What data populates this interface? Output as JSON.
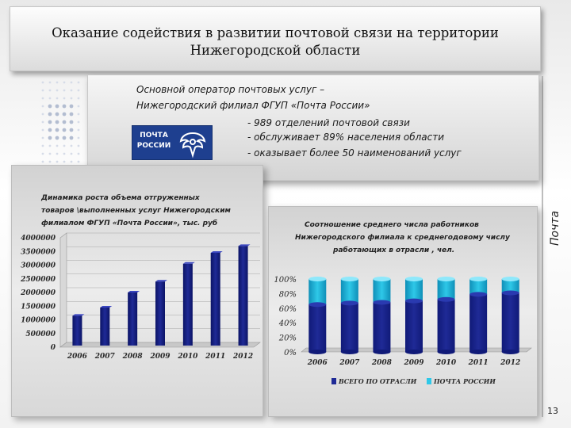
{
  "slide": {
    "title_line1": "Оказание содействия в развитии почтовой связи на территории",
    "title_line2": "Нижегородской области",
    "side_label": "Почта",
    "page_number": "13"
  },
  "info": {
    "line1": "Основной оператор почтовых услуг –",
    "line2": "Нижегородский филиал ФГУП «Почта России»",
    "bullet1": "- 989 отделений почтовой связи",
    "bullet2": "-  обслуживает 89% населения области",
    "bullet3": "- оказывает более 50 наименований услуг",
    "logo_line1": "ПОЧТА",
    "logo_line2": "РОССИИ"
  },
  "colors": {
    "bar_dark_blue": "#1f2a96",
    "bar_cyan": "#2ec8e8",
    "logo_blue": "#1e3f8f"
  },
  "chart_data": [
    {
      "type": "bar",
      "title_lines": [
        "Динамика роста объема отгруженных",
        "товаров \\выполненных  услуг Нижегородским",
        "филиалом ФГУП «Почта России», тыс. руб"
      ],
      "categories": [
        "2006",
        "2007",
        "2008",
        "2009",
        "2010",
        "2011",
        "2012"
      ],
      "values": [
        1150000,
        1450000,
        2000000,
        2400000,
        3050000,
        3450000,
        3700000
      ],
      "ylim": [
        0,
        4000000
      ],
      "yticks": [
        "4000000",
        "3500000",
        "3000000",
        "2500000",
        "2000000",
        "1500000",
        "1000000",
        "500000",
        "0"
      ],
      "grid": true
    },
    {
      "type": "bar",
      "stacked": true,
      "title_lines": [
        "Соотношение среднего числа работников",
        "Нижегородского филиала к среднегодовому числу",
        "работающих в отрасли , чел."
      ],
      "categories": [
        "2006",
        "2007",
        "2008",
        "2009",
        "2010",
        "2011",
        "2012"
      ],
      "series": [
        {
          "name": "Всего по отрасли",
          "values": [
            65,
            67,
            68,
            70,
            72,
            79,
            81
          ]
        },
        {
          "name": "Почта России",
          "values": [
            35,
            33,
            32,
            30,
            28,
            21,
            19
          ]
        }
      ],
      "ylim": [
        0,
        100
      ],
      "yticks": [
        "100%",
        "80%",
        "60%",
        "40%",
        "20%",
        "0%"
      ],
      "legend": "bottom"
    }
  ]
}
